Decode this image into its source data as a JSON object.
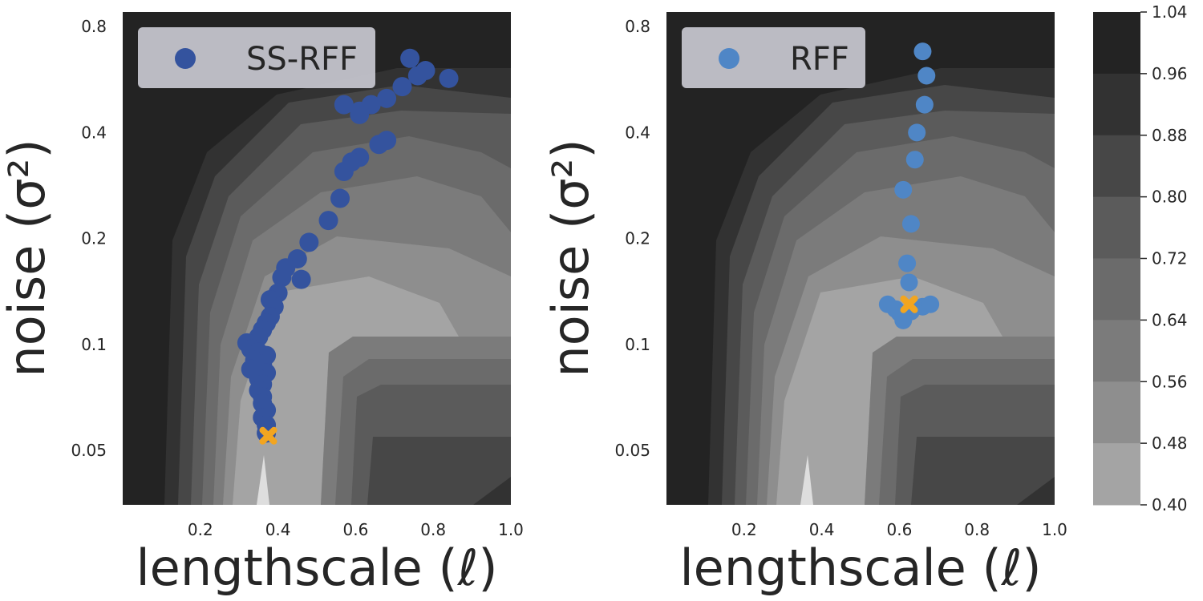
{
  "chart_data": [
    {
      "type": "scatter",
      "xlabel": "lengthscale (ℓ)",
      "ylabel": "noise (σ²)",
      "xlim": [
        0.0,
        1.0
      ],
      "ylim": [
        0.035,
        0.88
      ],
      "yscale": "log",
      "xticks": [
        "0.2",
        "0.4",
        "0.6",
        "0.8",
        "1.0"
      ],
      "yticks": [
        "0.05",
        "0.1",
        "0.2",
        "0.4",
        "0.8"
      ],
      "background": "filled contour map (shared colorbar)",
      "legend": {
        "placement": "top-left"
      },
      "series": [
        {
          "name": "SS-RFF",
          "color": "#34539e",
          "points": [
            [
              0.74,
              0.65
            ],
            [
              0.78,
              0.6
            ],
            [
              0.84,
              0.57
            ],
            [
              0.76,
              0.58
            ],
            [
              0.72,
              0.54
            ],
            [
              0.68,
              0.5
            ],
            [
              0.64,
              0.48
            ],
            [
              0.61,
              0.45
            ],
            [
              0.57,
              0.48
            ],
            [
              0.61,
              0.46
            ],
            [
              0.68,
              0.38
            ],
            [
              0.66,
              0.37
            ],
            [
              0.61,
              0.34
            ],
            [
              0.59,
              0.33
            ],
            [
              0.57,
              0.31
            ],
            [
              0.56,
              0.26
            ],
            [
              0.53,
              0.225
            ],
            [
              0.48,
              0.195
            ],
            [
              0.45,
              0.175
            ],
            [
              0.42,
              0.165
            ],
            [
              0.41,
              0.155
            ],
            [
              0.46,
              0.153
            ],
            [
              0.4,
              0.14
            ],
            [
              0.38,
              0.134
            ],
            [
              0.39,
              0.128
            ],
            [
              0.38,
              0.12
            ],
            [
              0.37,
              0.115
            ],
            [
              0.36,
              0.11
            ],
            [
              0.35,
              0.105
            ],
            [
              0.32,
              0.101
            ],
            [
              0.33,
              0.097
            ],
            [
              0.35,
              0.095
            ],
            [
              0.37,
              0.093
            ],
            [
              0.34,
              0.09
            ],
            [
              0.36,
              0.088
            ],
            [
              0.33,
              0.085
            ],
            [
              0.37,
              0.083
            ],
            [
              0.35,
              0.08
            ],
            [
              0.36,
              0.077
            ],
            [
              0.35,
              0.074
            ],
            [
              0.36,
              0.071
            ],
            [
              0.36,
              0.068
            ],
            [
              0.37,
              0.065
            ],
            [
              0.36,
              0.062
            ],
            [
              0.37,
              0.059
            ],
            [
              0.37,
              0.056
            ]
          ]
        },
        {
          "name": "",
          "color": "#f2a520",
          "marker": "x",
          "points": [
            [
              0.375,
              0.055
            ]
          ]
        }
      ]
    },
    {
      "type": "scatter",
      "xlabel": "lengthscale (ℓ)",
      "ylabel": "noise (σ²)",
      "xlim": [
        0.0,
        1.0
      ],
      "ylim": [
        0.035,
        0.88
      ],
      "yscale": "log",
      "xticks": [
        "0.2",
        "0.4",
        "0.6",
        "0.8",
        "1.0"
      ],
      "yticks": [
        "0.05",
        "0.1",
        "0.2",
        "0.4",
        "0.8"
      ],
      "background": "filled contour map (shared colorbar)",
      "legend": {
        "placement": "top-left"
      },
      "series": [
        {
          "name": "RFF",
          "color": "#4f86c6",
          "points": [
            [
              0.66,
              0.68
            ],
            [
              0.67,
              0.58
            ],
            [
              0.665,
              0.48
            ],
            [
              0.645,
              0.4
            ],
            [
              0.64,
              0.335
            ],
            [
              0.61,
              0.275
            ],
            [
              0.63,
              0.22
            ],
            [
              0.62,
              0.17
            ],
            [
              0.625,
              0.15
            ],
            [
              0.57,
              0.13
            ],
            [
              0.59,
              0.126
            ],
            [
              0.6,
              0.123
            ],
            [
              0.63,
              0.124
            ],
            [
              0.66,
              0.128
            ],
            [
              0.68,
              0.13
            ],
            [
              0.61,
              0.117
            ]
          ]
        },
        {
          "name": "",
          "color": "#f2a520",
          "marker": "x",
          "points": [
            [
              0.625,
              0.13
            ]
          ]
        }
      ]
    }
  ],
  "colorbar": {
    "ticks": [
      "1.04",
      "0.96",
      "0.88",
      "0.80",
      "0.72",
      "0.64",
      "0.56",
      "0.48",
      "0.40"
    ],
    "levels": [
      1.04,
      0.96,
      0.88,
      0.8,
      0.72,
      0.64,
      0.56,
      0.48,
      0.4
    ],
    "colors": [
      "#232323",
      "#323232",
      "#474747",
      "#5b5b5b",
      "#6b6b6b",
      "#7b7b7b",
      "#8e8e8e",
      "#a4a4a4",
      "#dedede"
    ]
  }
}
